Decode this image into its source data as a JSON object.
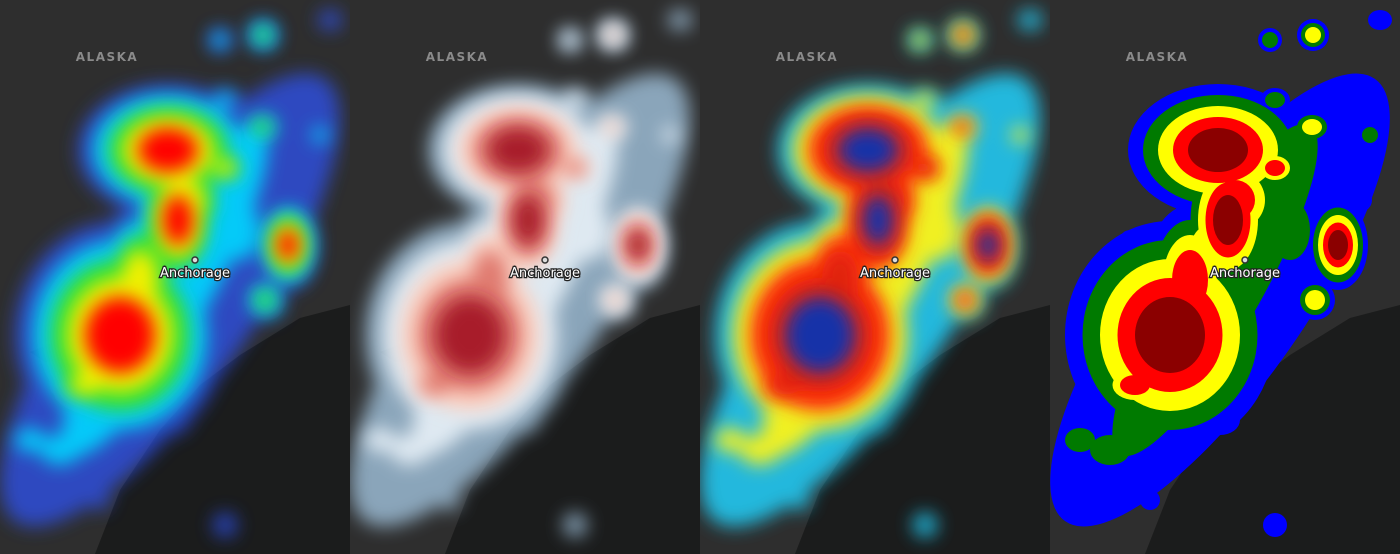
{
  "panels": [
    {
      "region": "ALASKA",
      "city": "Anchorage"
    },
    {
      "region": "ALASKA",
      "city": "Anchorage"
    },
    {
      "region": "ALASKA",
      "city": "Anchorage"
    },
    {
      "region": "ALASKA",
      "city": "Anchorage"
    }
  ]
}
